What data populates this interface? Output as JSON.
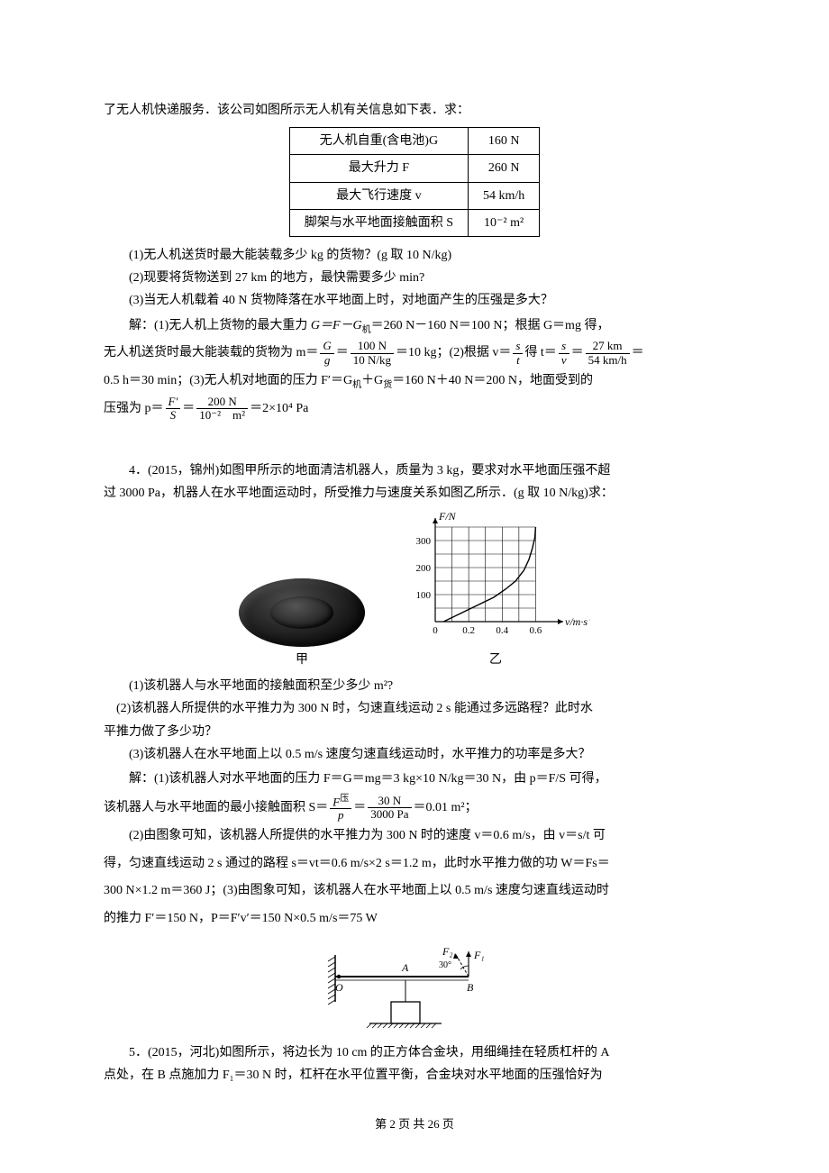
{
  "intro_line": "了无人机快递服务．该公司如图所示无人机有关信息如下表．求：",
  "spec_table": {
    "rows": [
      [
        "无人机自重(含电池)G",
        "160 N"
      ],
      [
        "最大升力 F",
        "260 N"
      ],
      [
        "最大飞行速度 v",
        "54 km/h"
      ],
      [
        "脚架与水平地面接触面积 S",
        "10⁻² m²"
      ]
    ]
  },
  "q3": {
    "sub1": "(1)无人机送货时最大能装载多少 kg 的货物？(g 取 10 N/kg)",
    "sub2": "(2)现要将货物送到 27 km 的地方，最快需要多少 min?",
    "sub3": "(3)当无人机载着 40 N 货物降落在水平地面上时，对地面产生的压强是多大？"
  },
  "sol3": {
    "l1a": "解：(1)无人机上货物的最大重力 ",
    "l1b": "G＝F－G",
    "l1c": "＝260 N－160 N＝100 N；根据 G＝mg 得，",
    "l2a": "无人机送货时最大能装载的货物为 m＝",
    "l2b": "＝",
    "l2c": "＝10 kg；(2)根据 v＝",
    "l2d": "得 t＝",
    "l2e": "＝",
    "l2f": "＝",
    "l3a": "0.5 h＝30 min；(3)无人机对地面的压力 F′＝G",
    "l3b": "＋G",
    "l3c": "＝160 N＋40 N＝200 N，地面受到的",
    "l4a": "压强为 p＝",
    "l4b": "＝",
    "l4c": "＝2×10⁴ Pa",
    "frac_Gg_num": "G",
    "frac_Gg_den": "g",
    "frac_100_num": "100 N",
    "frac_100_den": "10 N/kg",
    "frac_st_num": "s",
    "frac_st_den": "t",
    "frac_sv_num": "s",
    "frac_sv_den": "v",
    "frac_27_num": "27 km",
    "frac_27_den": "54 km/h",
    "frac_Fp_num": "F′",
    "frac_Fp_den": "S",
    "frac_200_num": "200 N",
    "frac_200_den": "10⁻²　m²",
    "sub_ji": "机",
    "sub_huo": "货"
  },
  "q4": {
    "stem1": "4．(2015，锦州)如图甲所示的地面清洁机器人，质量为 3 kg，要求对水平地面压强不超",
    "stem2": "过 3000 Pa，机器人在水平地面运动时，所受推力与速度关系如图乙所示．(g 取 10 N/kg)求：",
    "caption_a": "甲",
    "caption_b": "乙",
    "sub1": "(1)该机器人与水平地面的接触面积至少多少 m²?",
    "sub2a": "　(2)该机器人所提供的水平推力为 300 N 时，匀速直线运动 2 s 能通过多远路程？此时水",
    "sub2b": "平推力做了多少功？",
    "sub3": "(3)该机器人在水平地面上以 0.5 m/s 速度匀速直线运动时，水平推力的功率是多大？"
  },
  "sol4": {
    "l1": "解：(1)该机器人对水平地面的压力 F＝G＝mg＝3 kg×10 N/kg＝30 N，由 p＝F/S 可得，",
    "l2a": "该机器人与水平地面的最小接触面积 S＝",
    "l2b": "＝",
    "l2c": "＝0.01 m²；",
    "frac_Fp_num": "F",
    "frac_Fp_den": "p",
    "frac_Fp_sup": "压",
    "frac_30_num": "30 N",
    "frac_30_den": "3000 Pa",
    "l3": "(2)由图象可知，该机器人所提供的水平推力为 300 N 时的速度 v＝0.6 m/s，由 v＝s/t 可",
    "l4": "得，匀速直线运动 2 s 通过的路程 s＝vt＝0.6 m/s×2 s＝1.2 m，此时水平推力做的功 W＝Fs＝",
    "l5": "300 N×1.2 m＝360 J；(3)由图象可知，该机器人在水平地面上以 0.5 m/s 速度匀速直线运动时",
    "l6": "的推力 F′＝150 N，P＝F′v′＝150 N×0.5 m/s＝75 W"
  },
  "chart": {
    "y_label": "F/N",
    "x_label": "v/m·s⁻¹",
    "y_ticks": [
      "100",
      "200",
      "300"
    ],
    "x_ticks": [
      "0",
      "0.2",
      "0.4",
      "0.6"
    ],
    "y_max": 350,
    "x_max": 0.7,
    "grid_color": "#000000",
    "curve_points": [
      [
        0.05,
        0
      ],
      [
        0.15,
        30
      ],
      [
        0.25,
        60
      ],
      [
        0.35,
        90
      ],
      [
        0.42,
        120
      ],
      [
        0.48,
        150
      ],
      [
        0.53,
        190
      ],
      [
        0.56,
        230
      ],
      [
        0.58,
        270
      ],
      [
        0.595,
        310
      ],
      [
        0.6,
        350
      ]
    ]
  },
  "lever_diagram": {
    "labels": {
      "O": "O",
      "A": "A",
      "B": "B",
      "F1": "F₁",
      "F2": "F₂",
      "angle": "30°"
    }
  },
  "q5": {
    "stem1": "5．(2015，河北)如图所示，将边长为 10 cm 的正方体合金块，用细绳挂在轻质杠杆的 A",
    "stem2": "点处，在 B 点施加力 F₁＝30 N 时，杠杆在水平位置平衡，合金块对水平地面的压强恰好为"
  },
  "footer": "第 2 页 共 26 页"
}
